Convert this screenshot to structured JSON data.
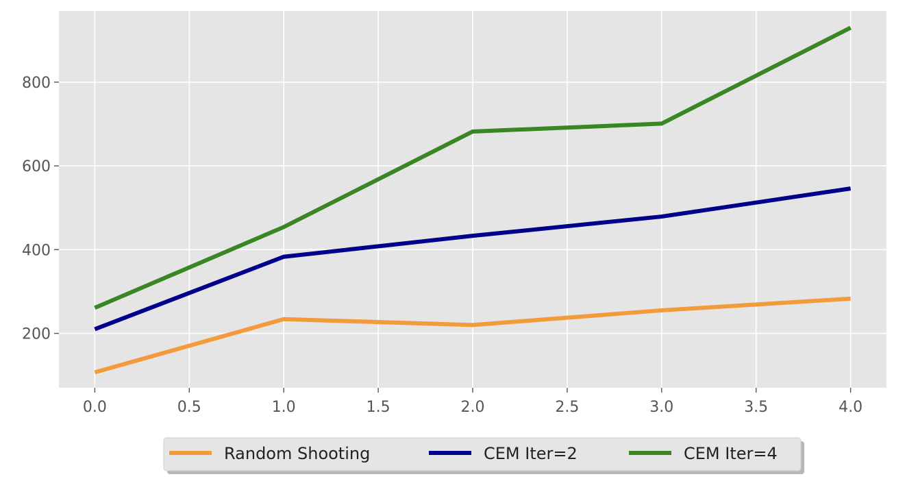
{
  "chart_data": {
    "type": "line",
    "title": "",
    "xlabel": "",
    "ylabel": "",
    "x": [
      0,
      1,
      2,
      3,
      4
    ],
    "xlim": [
      -0.19,
      4.19
    ],
    "ylim": [
      70,
      970
    ],
    "xticks": [
      0.0,
      0.5,
      1.0,
      1.5,
      2.0,
      2.5,
      3.0,
      3.5,
      4.0
    ],
    "xtick_labels": [
      "0.0",
      "0.5",
      "1.0",
      "1.5",
      "2.0",
      "2.5",
      "3.0",
      "3.5",
      "4.0"
    ],
    "yticks": [
      200,
      400,
      600,
      800
    ],
    "ytick_labels": [
      "200",
      "400",
      "600",
      "800"
    ],
    "grid": true,
    "legend_position": "bottom-center, below plot",
    "series": [
      {
        "name": "Random Shooting",
        "color": "#f39a3b",
        "values": [
          107,
          234,
          220,
          255,
          283
        ]
      },
      {
        "name": "CEM Iter=2",
        "color": "#00008b",
        "values": [
          210,
          383,
          433,
          479,
          546
        ]
      },
      {
        "name": "CEM Iter=4",
        "color": "#3a8524",
        "values": [
          261,
          454,
          682,
          701,
          930
        ]
      }
    ]
  }
}
